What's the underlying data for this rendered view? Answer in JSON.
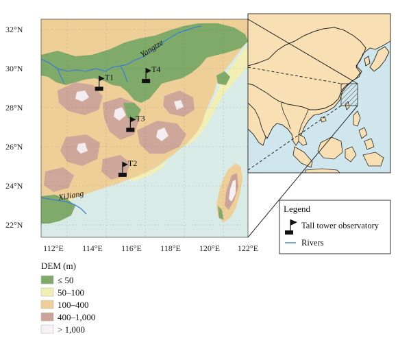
{
  "main_map": {
    "lon_ticks": [
      "112°E",
      "114°E",
      "116°E",
      "118°E",
      "120°E",
      "122°E"
    ],
    "lat_ticks": [
      "32°N",
      "30°N",
      "28°N",
      "26°N",
      "24°N",
      "22°N"
    ],
    "rivers": {
      "yangtze": "Yangtze",
      "xijiang": "XiJiang"
    },
    "stations": [
      {
        "id": "T1",
        "lon": 114.2,
        "lat": 29.0
      },
      {
        "id": "T4",
        "lon": 116.6,
        "lat": 29.4
      },
      {
        "id": "T3",
        "lon": 115.8,
        "lat": 26.9
      },
      {
        "id": "T2",
        "lon": 115.4,
        "lat": 24.6
      }
    ]
  },
  "overview_legend": {
    "title": "Legend",
    "tower_label": "Tall tower observatory",
    "rivers_label": "Rivers"
  },
  "dem_legend": {
    "title": "DEM (m)",
    "classes": [
      {
        "label": "≤ 50",
        "color": "#7faa6a"
      },
      {
        "label": "50–100",
        "color": "#f1efb4"
      },
      {
        "label": "100–400",
        "color": "#eecf97"
      },
      {
        "label": "400–1,000",
        "color": "#caa39a"
      },
      {
        "label": "> 1,000",
        "color": "#f7f0f4"
      }
    ]
  },
  "colors": {
    "sea": "#d9ebe6",
    "land_overview": "#f8e0b4",
    "sea_overview": "#cfe6ec",
    "river": "#3d7fd0"
  }
}
